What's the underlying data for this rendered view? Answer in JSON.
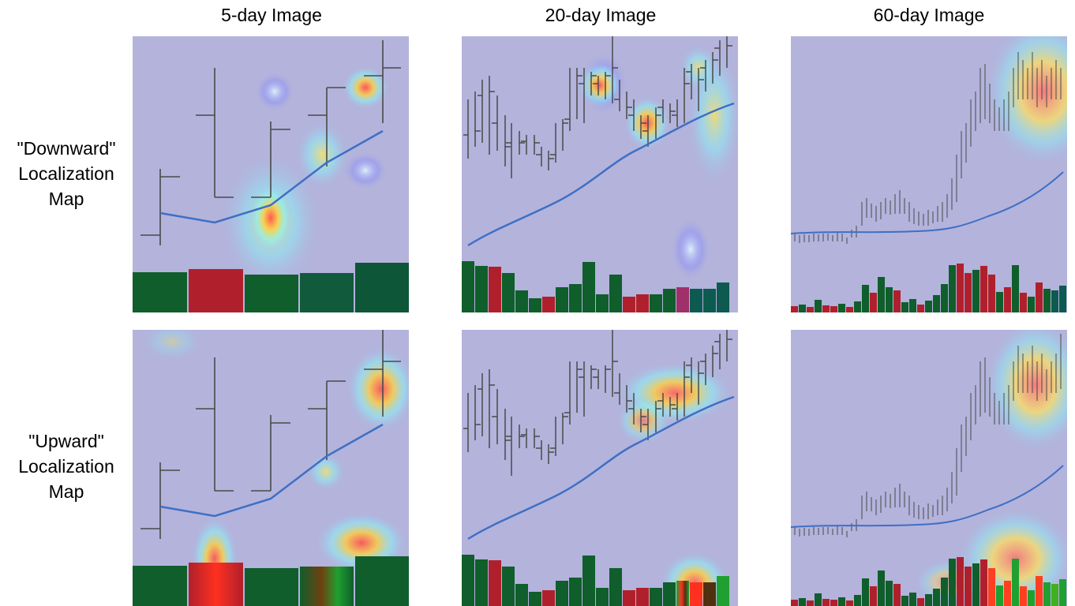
{
  "figure": {
    "column_titles": [
      "5-day Image",
      "20-day Image",
      "60-day Image"
    ],
    "row_labels": [
      {
        "quote_line": "\"Downward\"",
        "line2": "Localization",
        "line3": "Map"
      },
      {
        "quote_line": "\"Upward\"",
        "line2": "Localization",
        "line3": "Map"
      }
    ]
  },
  "colors": {
    "background_tint": "#b3b3dc",
    "price_bars": "#4a4a4a",
    "moving_average": "#3f6fc4",
    "volume_up": "#0f5e2b",
    "volume_down": "#b0202c"
  }
}
